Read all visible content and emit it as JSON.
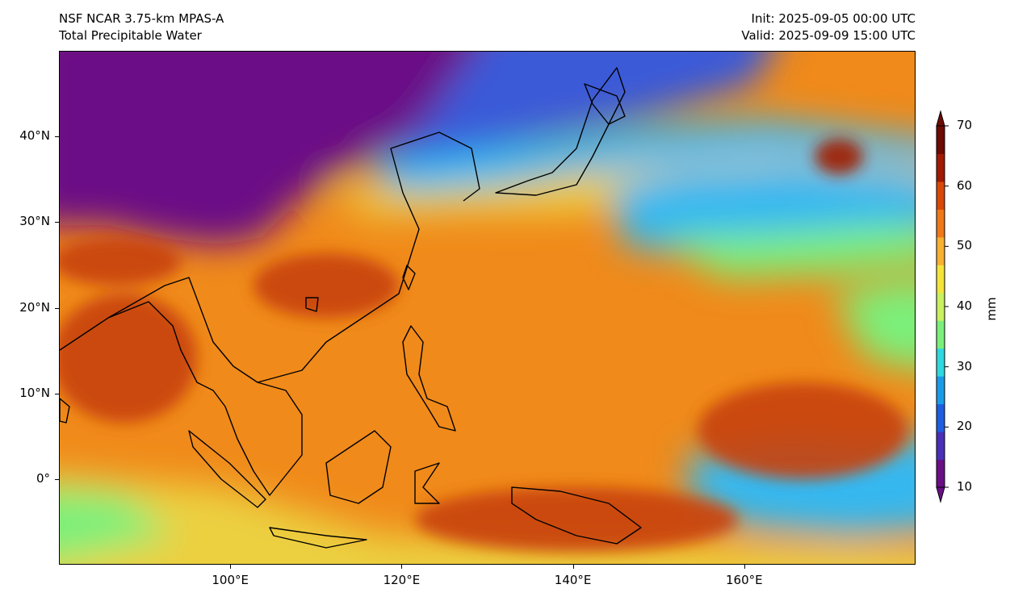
{
  "header": {
    "model": "NSF NCAR 3.75-km MPAS-A",
    "field": "Total Precipitable Water",
    "init": "Init: 2025-09-05 00:00 UTC",
    "valid": "Valid: 2025-09-09 15:00 UTC"
  },
  "axes": {
    "lon_range": [
      80,
      180
    ],
    "lat_range": [
      -10,
      50
    ],
    "lon_ticks": [
      {
        "value": 100,
        "label": "100°E"
      },
      {
        "value": 120,
        "label": "120°E"
      },
      {
        "value": 140,
        "label": "140°E"
      },
      {
        "value": 160,
        "label": "160°E"
      }
    ],
    "lat_ticks": [
      {
        "value": 40,
        "label": "40°N"
      },
      {
        "value": 30,
        "label": "30°N"
      },
      {
        "value": 20,
        "label": "20°N"
      },
      {
        "value": 10,
        "label": "10°N"
      },
      {
        "value": 0,
        "label": "0°"
      }
    ]
  },
  "colorbar": {
    "unit": "mm",
    "min": 10,
    "max": 70,
    "ticks": [
      {
        "value": 70,
        "label": "70"
      },
      {
        "value": 60,
        "label": "60"
      },
      {
        "value": 50,
        "label": "50"
      },
      {
        "value": 40,
        "label": "40"
      },
      {
        "value": 30,
        "label": "30"
      },
      {
        "value": 20,
        "label": "20"
      },
      {
        "value": 10,
        "label": "10"
      }
    ],
    "colors": [
      "#6a0f86",
      "#4a2fb8",
      "#1e5ee0",
      "#1a9be8",
      "#2fd8e0",
      "#7af07a",
      "#c8f060",
      "#f4e43a",
      "#f8b030",
      "#f07818",
      "#d84808",
      "#a01a04",
      "#6e0a02"
    ]
  },
  "palette": {
    "dry": "#6a0f86",
    "dry2": "#3a5ad8",
    "mid": "#36b8f0",
    "moist": "#ecd040",
    "wet": "#f08a1a",
    "very_wet": "#c8420a",
    "coast": "#000000"
  }
}
